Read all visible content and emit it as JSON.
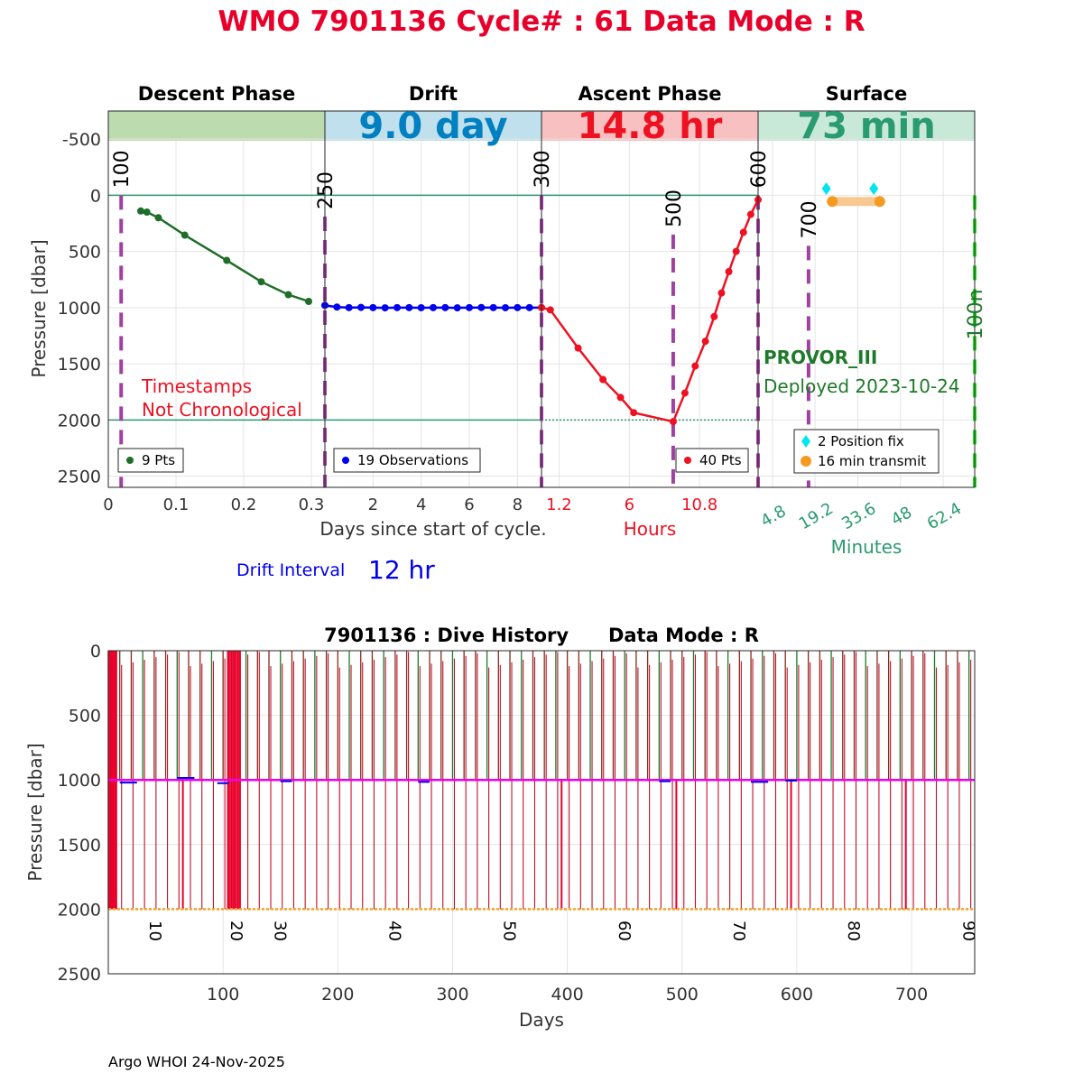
{
  "title": "WMO 7901136   Cycle# : 61   Data Mode : R",
  "colors": {
    "title": "#e8002a",
    "descent": "#1e6e2a",
    "drift": "#0000ee",
    "ascent": "#ee1122",
    "surface": "#2a9a70",
    "marker": "#a040a0",
    "position_fix": "#00e5ee",
    "transmit": "#f59a20",
    "deep_line": "#f5a623",
    "drift_line": "#ee00ee",
    "cycle_green": "#1e7a2a",
    "cycle_red": "#c0102a",
    "limit": "#22dd22"
  },
  "top_panel": {
    "phases": [
      {
        "name": "Descent Phase",
        "band_text": "",
        "band_color": "#bcdcb0",
        "text_color": "#000000"
      },
      {
        "name": "Drift",
        "band_text": "9.0 day",
        "band_color": "#bfe0ec",
        "text_color": "#0080c0"
      },
      {
        "name": "Ascent Phase",
        "band_text": "14.8 hr",
        "band_color": "#f8c0c0",
        "text_color": "#ee1122"
      },
      {
        "name": "Surface",
        "band_text": "73 min",
        "band_color": "#c8e8d8",
        "text_color": "#2a9a70"
      }
    ],
    "ylabel": "Pressure [dbar]",
    "yticks": [
      "-500",
      "0",
      "500",
      "1000",
      "1500",
      "2000",
      "2500"
    ],
    "ytick_values": [
      -500,
      0,
      500,
      1000,
      1500,
      2000,
      2500
    ],
    "ylim": [
      -750,
      2600
    ],
    "ref_lines": [
      0,
      2000
    ],
    "descent": {
      "xticks": [
        "0",
        "0.1",
        "0.2",
        "0.3"
      ],
      "xtick_values": [
        0,
        0.1,
        0.2,
        0.3
      ],
      "xlim": [
        0,
        0.32
      ],
      "x": [
        0.048,
        0.057,
        0.074,
        0.113,
        0.175,
        0.226,
        0.266,
        0.296
      ],
      "y": [
        140,
        150,
        200,
        355,
        580,
        770,
        885,
        945
      ],
      "legend": "9 Pts",
      "note_line1": "Timestamps",
      "note_line2": "Not Chronological"
    },
    "drift": {
      "xticks": [
        "2",
        "4",
        "6",
        "8"
      ],
      "xtick_values": [
        2,
        4,
        6,
        8
      ],
      "xlim": [
        0,
        9.0
      ],
      "x": [
        0.0,
        0.5,
        1.0,
        1.5,
        2.0,
        2.5,
        3.0,
        3.5,
        4.0,
        4.5,
        5.0,
        5.5,
        6.0,
        6.5,
        7.0,
        7.5,
        8.0,
        8.5,
        9.0
      ],
      "y": [
        980,
        995,
        1000,
        998,
        1000,
        1002,
        1000,
        1000,
        1001,
        1000,
        1000,
        1002,
        1000,
        999,
        1000,
        1001,
        1000,
        1000,
        1000
      ],
      "legend": "19 Observations",
      "xlabel": "Days since start of cycle."
    },
    "ascent": {
      "xticks": [
        "1.2",
        "6",
        "10.8"
      ],
      "xtick_values": [
        1.2,
        6,
        10.8
      ],
      "xlim": [
        0,
        14.8
      ],
      "x": [
        0.0,
        0.6,
        2.5,
        4.2,
        5.4,
        6.3,
        9.0,
        9.8,
        10.5,
        11.2,
        11.8,
        12.3,
        12.8,
        13.3,
        13.8,
        14.3,
        14.8
      ],
      "y": [
        1000,
        1020,
        1360,
        1640,
        1800,
        1935,
        2015,
        1760,
        1520,
        1300,
        1080,
        870,
        680,
        500,
        330,
        170,
        40
      ],
      "legend": "40 Pts",
      "xlabel": "Hours"
    },
    "surface": {
      "xticks": [
        "4.8",
        "19.2",
        "33.6",
        "48",
        "62.4"
      ],
      "xtick_values": [
        4.8,
        19.2,
        33.6,
        48,
        62.4
      ],
      "xlim": [
        0,
        73
      ],
      "fix_x": [
        23,
        39
      ],
      "fix_y": [
        45,
        45
      ],
      "transmit_x": [
        25,
        41
      ],
      "transmit_y": [
        55,
        55
      ],
      "legend_fix": "2 Position fix",
      "legend_transmit": "16 min transmit",
      "xlabel": "Minutes",
      "float_type": "PROVOR_III",
      "deployed": "Deployed 2023-10-24"
    },
    "markers": [
      {
        "label": "100",
        "phase": 0,
        "x": 0.019,
        "ytop": 0
      },
      {
        "label": "250",
        "phase": 1,
        "x": 0.0,
        "ytop": 190
      },
      {
        "label": "300",
        "phase": 2,
        "x": 0.0,
        "ytop": 0
      },
      {
        "label": "500",
        "phase": 2,
        "x": 9.0,
        "ytop": 350
      },
      {
        "label": "600",
        "phase": 3,
        "x": 0.0,
        "ytop": 0
      },
      {
        "label": "700",
        "phase": 3,
        "x": 17,
        "ytop": 450
      },
      {
        "label": "100n",
        "phase": 3,
        "x": 73,
        "ytop": 0
      }
    ],
    "drift_interval_label": "Drift Interval",
    "drift_interval_value": "12 hr"
  },
  "bottom_panel": {
    "title": "7901136 : Dive History      Data Mode : R",
    "ylabel": "Pressure [dbar]",
    "xlabel": "Days",
    "yticks": [
      "0",
      "500",
      "1000",
      "1500",
      "2000",
      "2500"
    ],
    "ytick_values": [
      0,
      500,
      1000,
      1500,
      2000,
      2500
    ],
    "ylim": [
      0,
      2500
    ],
    "xticks": [
      "100",
      "200",
      "300",
      "400",
      "500",
      "600",
      "700"
    ],
    "xtick_values": [
      100,
      200,
      300,
      400,
      500,
      600,
      700
    ],
    "xlim": [
      0,
      755
    ],
    "cycle_labels": [
      "10",
      "20",
      "30",
      "40",
      "50",
      "60",
      "70",
      "80",
      "90"
    ],
    "cycle_label_days": [
      36,
      107,
      145,
      245,
      345,
      445,
      545,
      645,
      745
    ],
    "drift_depth": 1000,
    "park_depth": 2000,
    "deep_drop_days": [
      65,
      395,
      495,
      595,
      695
    ]
  },
  "footer": "Argo WHOI 24-Nov-2025"
}
